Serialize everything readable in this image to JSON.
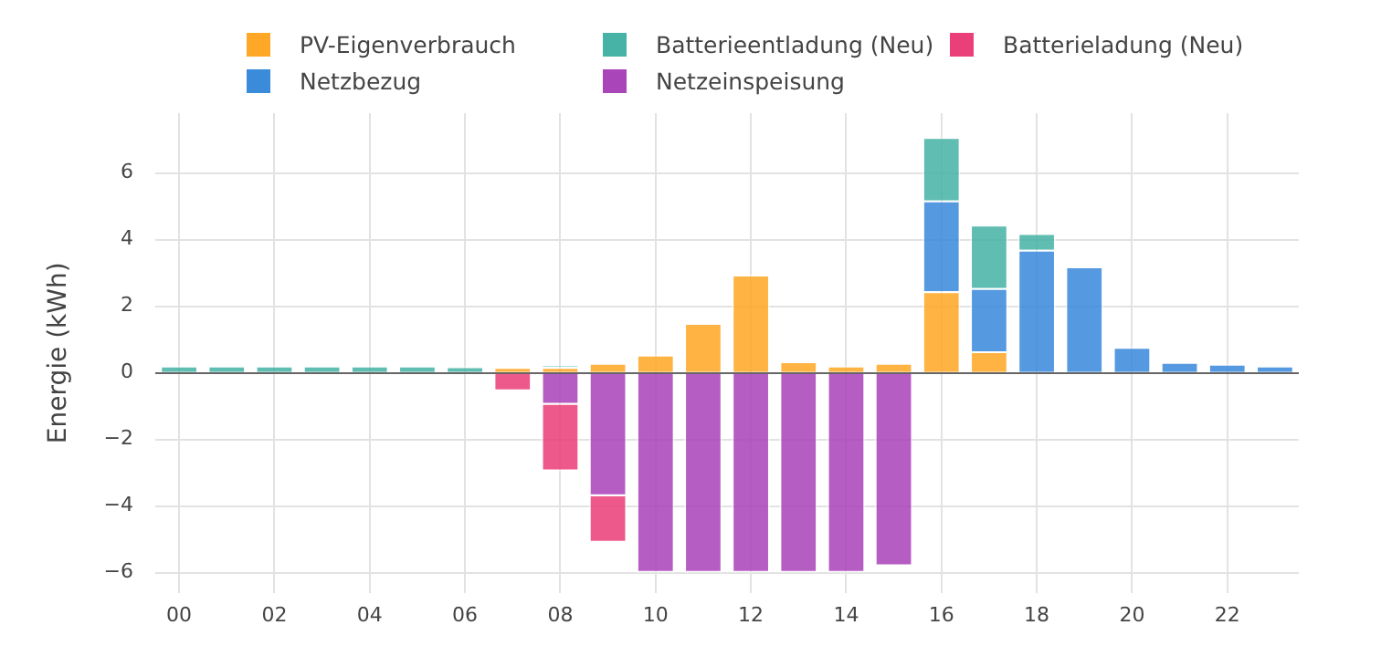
{
  "chart_data": {
    "type": "bar",
    "stacked": true,
    "ylabel": "Energie (kWh)",
    "categories": [
      "00",
      null,
      "02",
      null,
      "04",
      null,
      "06",
      null,
      "08",
      null,
      "10",
      null,
      "12",
      null,
      "14",
      null,
      "16",
      null,
      "18",
      null,
      "20",
      null,
      "22",
      null
    ],
    "series": [
      {
        "name": "PV-Eigenverbrauch",
        "color": "#ffa726",
        "values": [
          0,
          0,
          0,
          0,
          0,
          0,
          null,
          0.18,
          0.18,
          0.3,
          0.55,
          1.5,
          2.95,
          0.35,
          0.22,
          0.3,
          2.45,
          0.65,
          null,
          0,
          0,
          0,
          0,
          0
        ]
      },
      {
        "name": "Netzbezug",
        "color": "#3b8bdb",
        "values": [
          0,
          0,
          0,
          0,
          0,
          0,
          0,
          0,
          0,
          0,
          0,
          0,
          0,
          0,
          0,
          0,
          2.73,
          1.9,
          3.7,
          3.2,
          0.78,
          0.33,
          0.27,
          0.22
        ]
      },
      {
        "name": "Batterieentladung (Neu)",
        "color": "#46b3a6",
        "values": [
          0.22,
          0.22,
          0.22,
          0.22,
          0.22,
          0.22,
          0.2,
          null,
          0.03,
          0,
          0,
          0,
          0,
          0,
          0,
          0,
          1.9,
          1.9,
          0.5,
          0,
          0,
          0,
          0,
          0
        ]
      },
      {
        "name": "Netzeinspeisung",
        "color": "#aa44b9",
        "values": [
          0,
          0,
          0,
          0,
          0,
          0,
          0,
          0,
          -0.95,
          -3.7,
          -6.0,
          -6.0,
          -6.0,
          -6.0,
          -6.0,
          -5.8,
          0,
          0,
          0,
          0,
          0,
          0,
          0,
          0
        ]
      },
      {
        "name": "Batterieladung (Neu)",
        "color": "#ea3f78",
        "values": [
          0,
          0,
          0,
          0,
          0,
          0,
          0,
          -0.55,
          -2.0,
          -1.4,
          0,
          0,
          0,
          0,
          0,
          0,
          0,
          0,
          0,
          0,
          0,
          0,
          0,
          0
        ]
      }
    ],
    "ylim": [
      -6.6,
      7.8
    ],
    "yticks": [
      -6,
      -4,
      -2,
      0,
      2,
      4,
      6
    ],
    "grid": true,
    "legend": "top"
  }
}
